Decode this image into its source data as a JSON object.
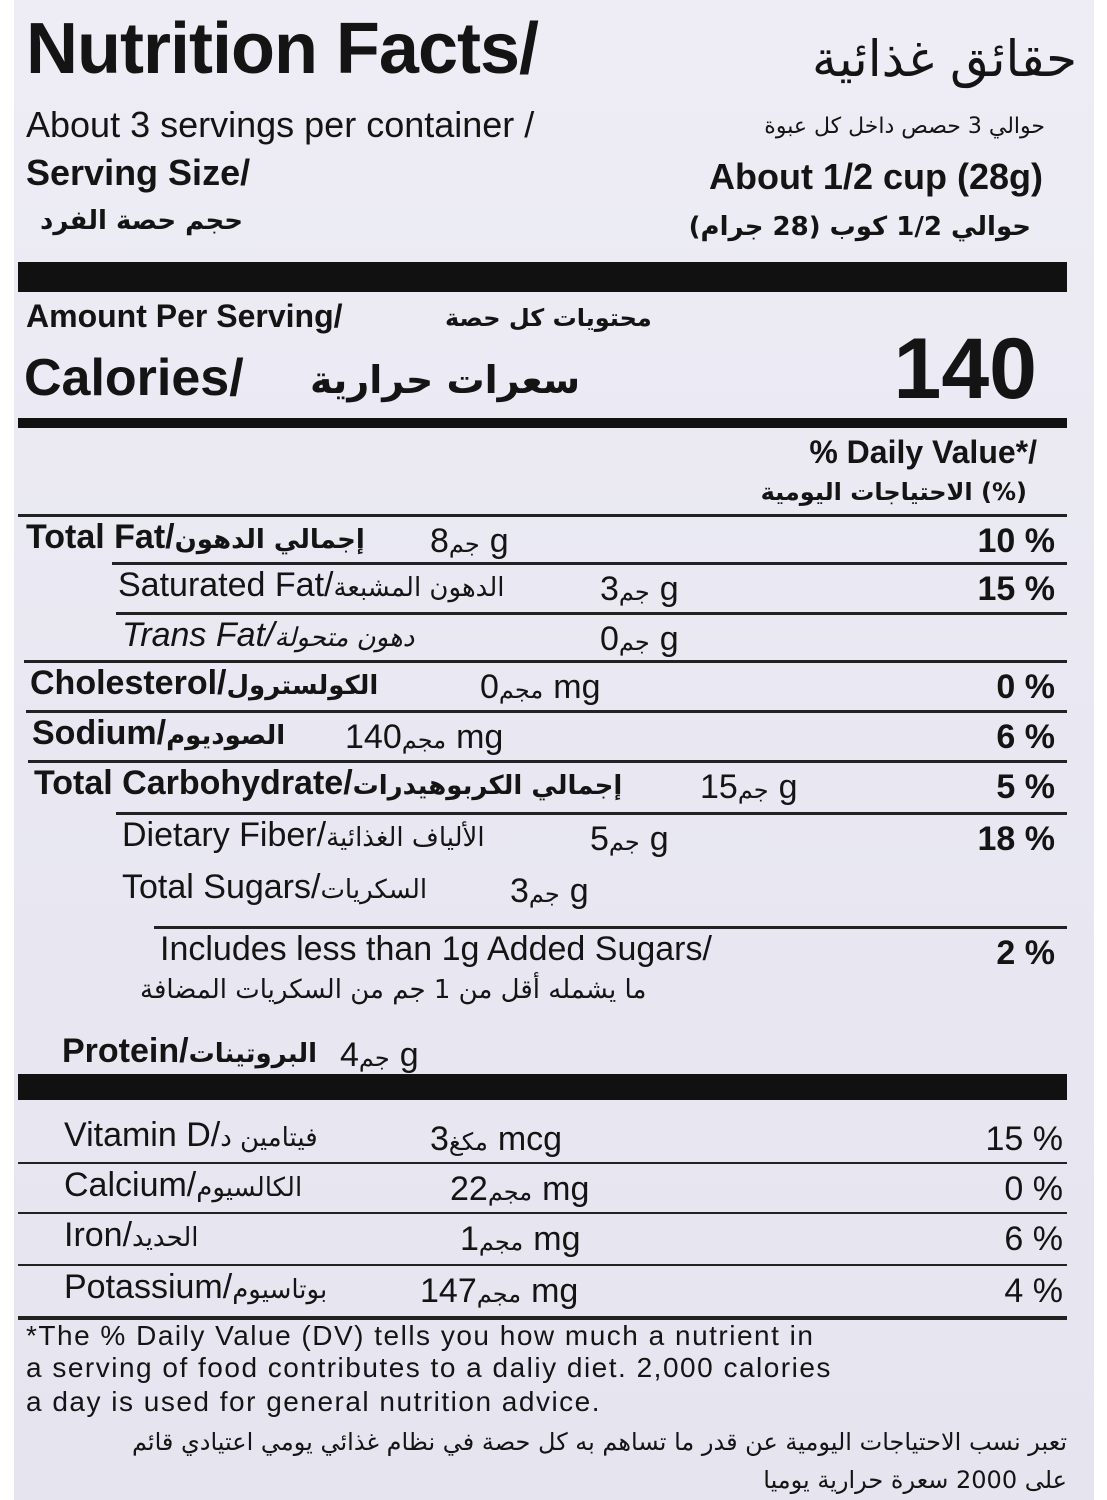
{
  "header": {
    "title": "Nutrition Facts/",
    "title_ar": "حقائق غذائية",
    "servings": "About 3 servings per container /",
    "servings_ar": "حوالي 3 حصص داخل كل عبوة",
    "serving_size_label": "Serving Size/",
    "serving_size_label_ar": "حجم حصة الفرد",
    "serving_size_value": "About 1/2 cup (28g)",
    "serving_size_value_ar": "حوالي 1/2 كوب (28 جرام)"
  },
  "calories": {
    "amount_per_serving": "Amount Per Serving/",
    "amount_per_serving_ar": "محتويات كل حصة",
    "label": "Calories/",
    "label_ar": "سعرات حرارية",
    "value": "140"
  },
  "daily_value_header": "% Daily Value*/",
  "daily_value_header_ar": "الاحتياجات اليومية (%)",
  "nutrients": [
    {
      "name": "Total Fat/",
      "name_ar": "إجمالي الدهون",
      "unit_ar": "جم",
      "amount": "8g",
      "dv": "10 %"
    },
    {
      "name": "Saturated Fat/",
      "name_ar": "الدهون المشبعة",
      "unit_ar": "جم",
      "amount": "3g",
      "dv": "15 %"
    },
    {
      "name": "Trans Fat/",
      "name_ar": "دهون متحولة",
      "unit_ar": "جم",
      "amount": "0g",
      "dv": ""
    },
    {
      "name": "Cholesterol/",
      "name_ar": "الكولسترول",
      "unit_ar": "مجم",
      "amount": "0mg",
      "dv": "0 %"
    },
    {
      "name": "Sodium/",
      "name_ar": "الصوديوم",
      "unit_ar": "مجم",
      "amount": "140mg",
      "dv": "6 %"
    },
    {
      "name": "Total Carbohydrate/",
      "name_ar": "إجمالي الكربوهيدرات",
      "unit_ar": "جم",
      "amount": "15g",
      "dv": "5 %"
    },
    {
      "name": "Dietary Fiber/",
      "name_ar": "الألياف الغذائية",
      "unit_ar": "جم",
      "amount": "5g",
      "dv": "18 %"
    },
    {
      "name": "Total Sugars/",
      "name_ar": "السكريات",
      "unit_ar": "جم",
      "amount": "3g",
      "dv": ""
    },
    {
      "name": "Includes less than 1g Added Sugars/",
      "name_ar": "ما يشمله أقل من 1 جم من السكريات المضافة",
      "unit_ar": "",
      "amount": "",
      "dv": "2 %"
    },
    {
      "name": "Protein/",
      "name_ar": "البروتينات",
      "unit_ar": "جم",
      "amount": "4g",
      "dv": ""
    }
  ],
  "vitamins": [
    {
      "name": "Vitamin D/",
      "name_ar": "فيتامين د",
      "unit_ar": "مكغ",
      "amount": "3mcg",
      "dv": "15 %"
    },
    {
      "name": "Calcium/",
      "name_ar": "الكالسيوم",
      "unit_ar": "مجم",
      "amount": "22mg",
      "dv": "0 %"
    },
    {
      "name": "Iron/",
      "name_ar": "الحديد",
      "unit_ar": "مجم",
      "amount": "1mg",
      "dv": "6 %"
    },
    {
      "name": "Potassium/",
      "name_ar": "بوتاسيوم",
      "unit_ar": "مجم",
      "amount": "147mg",
      "dv": "4 %"
    }
  ],
  "footnote": {
    "lines": [
      "*The % Daily Value (DV) tells you how much a nutrient in",
      "a serving of food contributes to a daliy diet. 2,000 calories",
      "a day is used for general nutrition advice."
    ],
    "lines_ar": [
      "تعبر نسب الاحتياجات اليومية عن قدر ما تساهم به كل حصة في نظام غذائي يومي اعتيادي قائم",
      "على 2000 سعرة حرارية يوميا"
    ]
  }
}
